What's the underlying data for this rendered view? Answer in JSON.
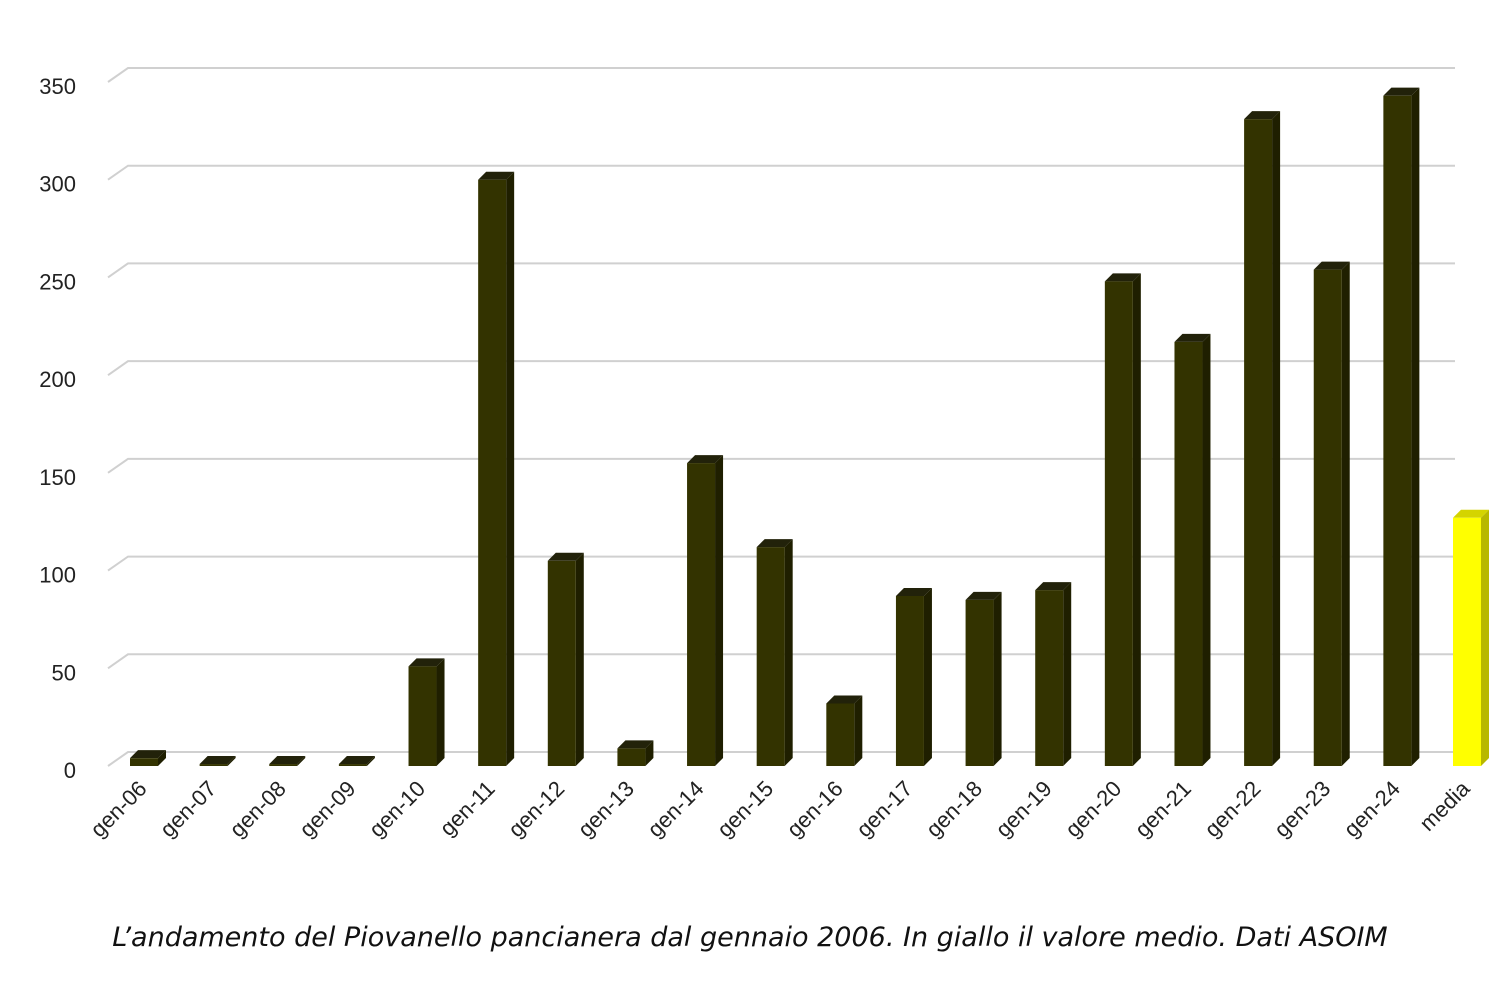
{
  "chart_data": {
    "type": "bar",
    "categories": [
      "gen-06",
      "gen-07",
      "gen-08",
      "gen-09",
      "gen-10",
      "gen-11",
      "gen-12",
      "gen-13",
      "gen-14",
      "gen-15",
      "gen-16",
      "gen-17",
      "gen-18",
      "gen-19",
      "gen-20",
      "gen-21",
      "gen-22",
      "gen-23",
      "gen-24",
      "media"
    ],
    "values": [
      4,
      1,
      1,
      1,
      51,
      300,
      105,
      9,
      155,
      112,
      32,
      87,
      85,
      90,
      248,
      217,
      331,
      254,
      343,
      127
    ],
    "highlight_category": "media",
    "ylim": [
      0,
      350
    ],
    "yticks": [
      0,
      50,
      100,
      150,
      200,
      250,
      300,
      350
    ],
    "grid": true,
    "title": "",
    "xlabel": "",
    "ylabel": "",
    "colors": {
      "bar": "#333300",
      "bar_side": "#1f1f00",
      "bar_top": "#22220a",
      "highlight": "#ffff00",
      "highlight_side": "#b8b800",
      "highlight_top": "#d4d400",
      "grid": "#d0d0d0"
    }
  },
  "caption": "L’andamento del Piovanello pancianera dal gennaio 2006. In giallo il valore medio. Dati ASOIM"
}
